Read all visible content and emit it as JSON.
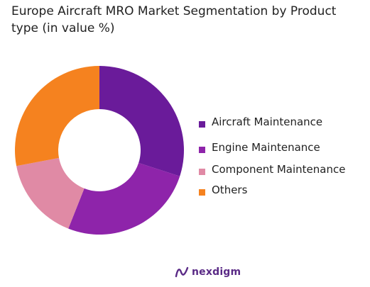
{
  "chart_data": {
    "type": "pie",
    "title": "Europe Aircraft MRO Market Segmentation by Product type (in value %)",
    "donut": true,
    "legend_position": "right",
    "categories": [
      "Aircraft Maintenance",
      "Engine Maintenance",
      "Component Maintenance",
      "Others"
    ],
    "values": [
      30,
      26,
      16,
      28
    ],
    "colors": [
      "#6a1b9a",
      "#8e24aa",
      "#e08aa5",
      "#f5821f"
    ]
  },
  "brand": {
    "name": "nexdigm",
    "color": "#5a2a86"
  }
}
